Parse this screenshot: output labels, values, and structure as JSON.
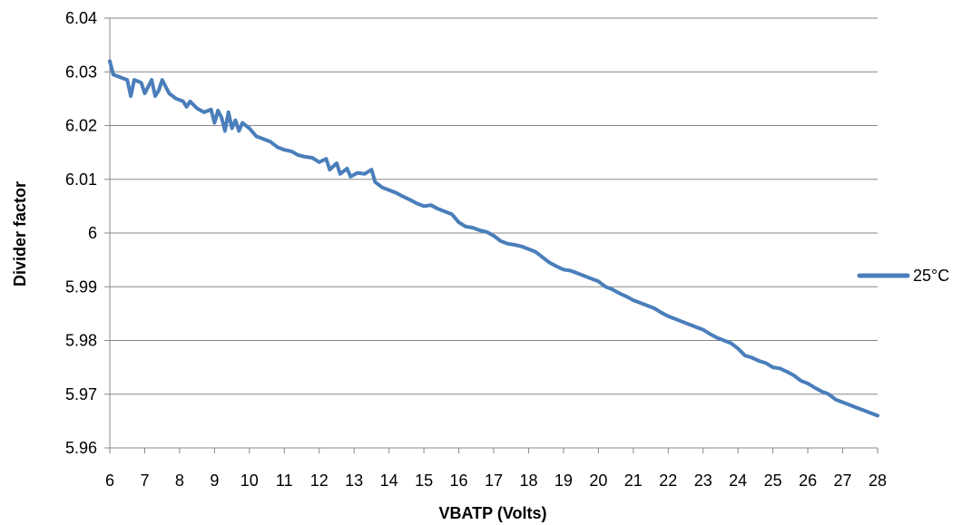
{
  "chart_data": {
    "type": "line",
    "xlabel": "VBATP  (Volts)",
    "ylabel": "Divider factor",
    "xlim": [
      6,
      28
    ],
    "ylim": [
      5.96,
      6.04
    ],
    "x_ticks": [
      6,
      7,
      8,
      9,
      10,
      11,
      12,
      13,
      14,
      15,
      16,
      17,
      18,
      19,
      20,
      21,
      22,
      23,
      24,
      25,
      26,
      27,
      28
    ],
    "y_ticks": [
      {
        "value": 6.04,
        "label": "6.04"
      },
      {
        "value": 6.03,
        "label": "6.03"
      },
      {
        "value": 6.02,
        "label": "6.02"
      },
      {
        "value": 6.01,
        "label": "6.01"
      },
      {
        "value": 6.0,
        "label": "6"
      },
      {
        "value": 5.99,
        "label": "5.99"
      },
      {
        "value": 5.98,
        "label": "5.98"
      },
      {
        "value": 5.97,
        "label": "5.97"
      },
      {
        "value": 5.96,
        "label": "5.96"
      }
    ],
    "grid": "horizontal",
    "legend_position": "right",
    "series": [
      {
        "name": "25°C",
        "color": "#4a7ebb",
        "points": [
          [
            6.0,
            6.032
          ],
          [
            6.1,
            6.0295
          ],
          [
            6.3,
            6.029
          ],
          [
            6.5,
            6.0285
          ],
          [
            6.6,
            6.0255
          ],
          [
            6.7,
            6.0285
          ],
          [
            6.9,
            6.028
          ],
          [
            7.0,
            6.026
          ],
          [
            7.2,
            6.0285
          ],
          [
            7.3,
            6.0255
          ],
          [
            7.4,
            6.0265
          ],
          [
            7.5,
            6.0285
          ],
          [
            7.7,
            6.026
          ],
          [
            7.9,
            6.025
          ],
          [
            8.1,
            6.0245
          ],
          [
            8.2,
            6.0235
          ],
          [
            8.3,
            6.0245
          ],
          [
            8.5,
            6.0232
          ],
          [
            8.7,
            6.0225
          ],
          [
            8.9,
            6.023
          ],
          [
            9.0,
            6.0205
          ],
          [
            9.1,
            6.0228
          ],
          [
            9.2,
            6.0215
          ],
          [
            9.3,
            6.019
          ],
          [
            9.4,
            6.0225
          ],
          [
            9.5,
            6.0195
          ],
          [
            9.6,
            6.021
          ],
          [
            9.7,
            6.019
          ],
          [
            9.8,
            6.0205
          ],
          [
            10.0,
            6.0195
          ],
          [
            10.2,
            6.018
          ],
          [
            10.4,
            6.0175
          ],
          [
            10.6,
            6.017
          ],
          [
            10.8,
            6.016
          ],
          [
            11.0,
            6.0155
          ],
          [
            11.2,
            6.0152
          ],
          [
            11.4,
            6.0145
          ],
          [
            11.6,
            6.0142
          ],
          [
            11.8,
            6.014
          ],
          [
            12.0,
            6.0132
          ],
          [
            12.2,
            6.0138
          ],
          [
            12.3,
            6.0118
          ],
          [
            12.5,
            6.013
          ],
          [
            12.6,
            6.011
          ],
          [
            12.8,
            6.012
          ],
          [
            12.9,
            6.0105
          ],
          [
            13.1,
            6.0112
          ],
          [
            13.3,
            6.011
          ],
          [
            13.5,
            6.0118
          ],
          [
            13.6,
            6.0095
          ],
          [
            13.8,
            6.0085
          ],
          [
            14.0,
            6.008
          ],
          [
            14.2,
            6.0075
          ],
          [
            14.4,
            6.0068
          ],
          [
            14.6,
            6.0062
          ],
          [
            14.8,
            6.0055
          ],
          [
            15.0,
            6.005
          ],
          [
            15.2,
            6.0052
          ],
          [
            15.4,
            6.0045
          ],
          [
            15.6,
            6.004
          ],
          [
            15.8,
            6.0035
          ],
          [
            16.0,
            6.002
          ],
          [
            16.2,
            6.0012
          ],
          [
            16.4,
            6.001
          ],
          [
            16.6,
            6.0005
          ],
          [
            16.8,
            6.0002
          ],
          [
            17.0,
            5.9995
          ],
          [
            17.2,
            5.9985
          ],
          [
            17.4,
            5.998
          ],
          [
            17.6,
            5.9978
          ],
          [
            17.8,
            5.9975
          ],
          [
            18.0,
            5.997
          ],
          [
            18.2,
            5.9965
          ],
          [
            18.4,
            5.9955
          ],
          [
            18.6,
            5.9945
          ],
          [
            18.8,
            5.9938
          ],
          [
            19.0,
            5.9932
          ],
          [
            19.2,
            5.993
          ],
          [
            19.4,
            5.9925
          ],
          [
            19.6,
            5.992
          ],
          [
            19.8,
            5.9915
          ],
          [
            20.0,
            5.991
          ],
          [
            20.2,
            5.99
          ],
          [
            20.4,
            5.9895
          ],
          [
            20.6,
            5.9888
          ],
          [
            20.8,
            5.9882
          ],
          [
            21.0,
            5.9875
          ],
          [
            21.2,
            5.987
          ],
          [
            21.4,
            5.9865
          ],
          [
            21.6,
            5.986
          ],
          [
            21.8,
            5.9852
          ],
          [
            22.0,
            5.9845
          ],
          [
            22.2,
            5.984
          ],
          [
            22.4,
            5.9835
          ],
          [
            22.6,
            5.983
          ],
          [
            22.8,
            5.9825
          ],
          [
            23.0,
            5.982
          ],
          [
            23.2,
            5.9812
          ],
          [
            23.4,
            5.9805
          ],
          [
            23.6,
            5.98
          ],
          [
            23.8,
            5.9795
          ],
          [
            24.0,
            5.9785
          ],
          [
            24.2,
            5.9772
          ],
          [
            24.4,
            5.9768
          ],
          [
            24.6,
            5.9762
          ],
          [
            24.8,
            5.9758
          ],
          [
            25.0,
            5.975
          ],
          [
            25.2,
            5.9748
          ],
          [
            25.4,
            5.9742
          ],
          [
            25.6,
            5.9735
          ],
          [
            25.8,
            5.9725
          ],
          [
            26.0,
            5.972
          ],
          [
            26.2,
            5.9712
          ],
          [
            26.4,
            5.9705
          ],
          [
            26.6,
            5.97
          ],
          [
            26.8,
            5.969
          ],
          [
            27.0,
            5.9685
          ],
          [
            27.2,
            5.968
          ],
          [
            27.4,
            5.9675
          ],
          [
            27.6,
            5.967
          ],
          [
            27.8,
            5.9665
          ],
          [
            28.0,
            5.966
          ]
        ]
      }
    ]
  }
}
